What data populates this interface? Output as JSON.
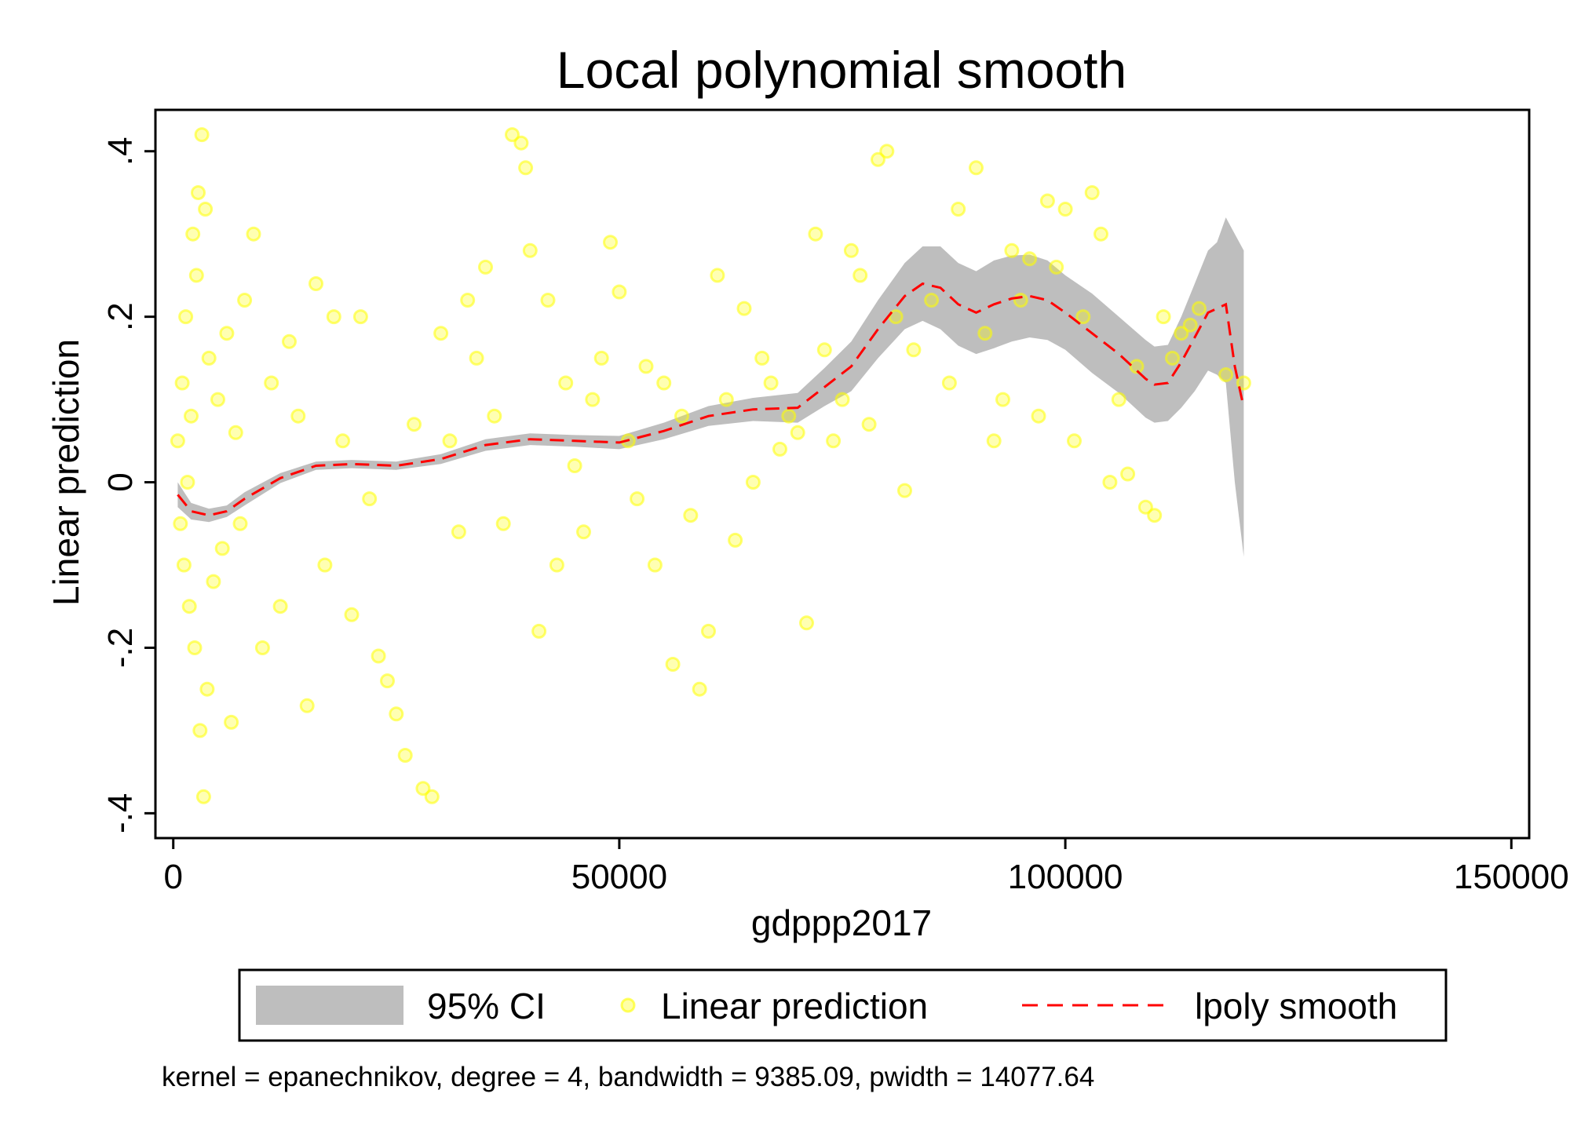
{
  "chart_data": {
    "type": "scatter",
    "title": "Local polynomial smooth",
    "xlabel": "gdppp2017",
    "ylabel": "Linear prediction",
    "xlim": [
      -2000,
      152000
    ],
    "ylim": [
      -0.43,
      0.45
    ],
    "x_ticks": [
      0,
      50000,
      100000,
      150000
    ],
    "x_tick_labels": [
      "0",
      "50000",
      "100000",
      "150000"
    ],
    "y_ticks": [
      -0.4,
      -0.2,
      0,
      0.2,
      0.4
    ],
    "y_tick_labels": [
      "-.4",
      "-.2",
      "0",
      ".2",
      ".4"
    ],
    "grid": false,
    "legend_position": "bottom",
    "legend": [
      {
        "label": "95% CI",
        "symbol": "band",
        "color": "#bebebe"
      },
      {
        "label": "Linear prediction",
        "symbol": "circle",
        "color": "#ffff00"
      },
      {
        "label": "lpoly smooth",
        "symbol": "dashed-line",
        "color": "#ff0000"
      }
    ],
    "note": "kernel = epanechnikov, degree = 4, bandwidth = 9385.09, pwidth = 14077.64",
    "colors": {
      "scatter": "#ffff00",
      "ci_band": "#bebebe",
      "smooth_line": "#ff0000"
    },
    "series": [
      {
        "name": "Linear prediction",
        "kind": "scatter",
        "points": [
          [
            500,
            0.05
          ],
          [
            800,
            -0.05
          ],
          [
            1000,
            0.12
          ],
          [
            1200,
            -0.1
          ],
          [
            1400,
            0.2
          ],
          [
            1600,
            0.0
          ],
          [
            1800,
            -0.15
          ],
          [
            2000,
            0.08
          ],
          [
            2200,
            0.3
          ],
          [
            2400,
            -0.2
          ],
          [
            2600,
            0.25
          ],
          [
            2800,
            0.35
          ],
          [
            3000,
            -0.3
          ],
          [
            3200,
            0.42
          ],
          [
            3400,
            -0.38
          ],
          [
            3600,
            0.33
          ],
          [
            3800,
            -0.25
          ],
          [
            4000,
            0.15
          ],
          [
            4500,
            -0.12
          ],
          [
            5000,
            0.1
          ],
          [
            5500,
            -0.08
          ],
          [
            6000,
            0.18
          ],
          [
            6500,
            -0.29
          ],
          [
            7000,
            0.06
          ],
          [
            7500,
            -0.05
          ],
          [
            8000,
            0.22
          ],
          [
            9000,
            0.3
          ],
          [
            10000,
            -0.2
          ],
          [
            11000,
            0.12
          ],
          [
            12000,
            -0.15
          ],
          [
            13000,
            0.17
          ],
          [
            14000,
            0.08
          ],
          [
            15000,
            -0.27
          ],
          [
            16000,
            0.24
          ],
          [
            17000,
            -0.1
          ],
          [
            18000,
            0.2
          ],
          [
            19000,
            0.05
          ],
          [
            20000,
            -0.16
          ],
          [
            21000,
            0.2
          ],
          [
            22000,
            -0.02
          ],
          [
            23000,
            -0.21
          ],
          [
            24000,
            -0.24
          ],
          [
            25000,
            -0.28
          ],
          [
            26000,
            -0.33
          ],
          [
            27000,
            0.07
          ],
          [
            28000,
            -0.37
          ],
          [
            29000,
            -0.38
          ],
          [
            30000,
            0.18
          ],
          [
            31000,
            0.05
          ],
          [
            32000,
            -0.06
          ],
          [
            33000,
            0.22
          ],
          [
            34000,
            0.15
          ],
          [
            35000,
            0.26
          ],
          [
            36000,
            0.08
          ],
          [
            37000,
            -0.05
          ],
          [
            38000,
            0.42
          ],
          [
            39000,
            0.41
          ],
          [
            39500,
            0.38
          ],
          [
            40000,
            0.28
          ],
          [
            41000,
            -0.18
          ],
          [
            42000,
            0.22
          ],
          [
            43000,
            -0.1
          ],
          [
            44000,
            0.12
          ],
          [
            45000,
            0.02
          ],
          [
            46000,
            -0.06
          ],
          [
            47000,
            0.1
          ],
          [
            48000,
            0.15
          ],
          [
            49000,
            0.29
          ],
          [
            50000,
            0.23
          ],
          [
            51000,
            0.05
          ],
          [
            52000,
            -0.02
          ],
          [
            53000,
            0.14
          ],
          [
            54000,
            -0.1
          ],
          [
            55000,
            0.12
          ],
          [
            56000,
            -0.22
          ],
          [
            57000,
            0.08
          ],
          [
            58000,
            -0.04
          ],
          [
            59000,
            -0.25
          ],
          [
            60000,
            -0.18
          ],
          [
            61000,
            0.25
          ],
          [
            62000,
            0.1
          ],
          [
            63000,
            -0.07
          ],
          [
            64000,
            0.21
          ],
          [
            65000,
            0.0
          ],
          [
            66000,
            0.15
          ],
          [
            67000,
            0.12
          ],
          [
            68000,
            0.04
          ],
          [
            69000,
            0.08
          ],
          [
            70000,
            0.06
          ],
          [
            71000,
            -0.17
          ],
          [
            72000,
            0.3
          ],
          [
            73000,
            0.16
          ],
          [
            74000,
            0.05
          ],
          [
            75000,
            0.1
          ],
          [
            76000,
            0.28
          ],
          [
            77000,
            0.25
          ],
          [
            78000,
            0.07
          ],
          [
            79000,
            0.39
          ],
          [
            80000,
            0.4
          ],
          [
            81000,
            0.2
          ],
          [
            82000,
            -0.01
          ],
          [
            83000,
            0.16
          ],
          [
            85000,
            0.22
          ],
          [
            87000,
            0.12
          ],
          [
            88000,
            0.33
          ],
          [
            90000,
            0.38
          ],
          [
            91000,
            0.18
          ],
          [
            92000,
            0.05
          ],
          [
            93000,
            0.1
          ],
          [
            94000,
            0.28
          ],
          [
            95000,
            0.22
          ],
          [
            96000,
            0.27
          ],
          [
            97000,
            0.08
          ],
          [
            98000,
            0.34
          ],
          [
            99000,
            0.26
          ],
          [
            100000,
            0.33
          ],
          [
            101000,
            0.05
          ],
          [
            102000,
            0.2
          ],
          [
            103000,
            0.35
          ],
          [
            104000,
            0.3
          ],
          [
            105000,
            0.0
          ],
          [
            106000,
            0.1
          ],
          [
            107000,
            0.01
          ],
          [
            108000,
            0.14
          ],
          [
            109000,
            -0.03
          ],
          [
            110000,
            -0.04
          ],
          [
            111000,
            0.2
          ],
          [
            112000,
            0.15
          ],
          [
            113000,
            0.18
          ],
          [
            114000,
            0.19
          ],
          [
            115000,
            0.21
          ],
          [
            118000,
            0.13
          ],
          [
            120000,
            0.12
          ]
        ]
      },
      {
        "name": "lpoly smooth",
        "kind": "line",
        "x": [
          500,
          2000,
          4000,
          6000,
          8000,
          12000,
          16000,
          20000,
          25000,
          30000,
          35000,
          40000,
          45000,
          50000,
          55000,
          60000,
          65000,
          70000,
          73000,
          76000,
          79000,
          82000,
          84000,
          86000,
          88000,
          90000,
          92000,
          94000,
          96000,
          98000,
          100000,
          103000,
          106000,
          109000,
          110000,
          111500,
          113000,
          114500,
          116000,
          117000,
          118000,
          119000,
          120000
        ],
        "y": [
          -0.015,
          -0.035,
          -0.04,
          -0.035,
          -0.02,
          0.005,
          0.02,
          0.022,
          0.02,
          0.028,
          0.045,
          0.052,
          0.05,
          0.048,
          0.062,
          0.08,
          0.088,
          0.09,
          0.115,
          0.14,
          0.185,
          0.225,
          0.24,
          0.235,
          0.215,
          0.205,
          0.215,
          0.222,
          0.225,
          0.22,
          0.205,
          0.18,
          0.155,
          0.125,
          0.118,
          0.12,
          0.145,
          0.175,
          0.205,
          0.21,
          0.215,
          0.14,
          0.09
        ]
      },
      {
        "name": "95% CI",
        "kind": "band",
        "x": [
          500,
          2000,
          4000,
          6000,
          8000,
          12000,
          16000,
          20000,
          25000,
          30000,
          35000,
          40000,
          45000,
          50000,
          55000,
          60000,
          65000,
          70000,
          73000,
          76000,
          79000,
          82000,
          84000,
          86000,
          88000,
          90000,
          92000,
          94000,
          96000,
          98000,
          100000,
          103000,
          106000,
          109000,
          110000,
          111500,
          113000,
          114500,
          116000,
          117000,
          118000,
          119000,
          120000
        ],
        "lower": [
          -0.03,
          -0.045,
          -0.048,
          -0.042,
          -0.028,
          -0.001,
          0.015,
          0.017,
          0.015,
          0.022,
          0.038,
          0.045,
          0.043,
          0.04,
          0.052,
          0.068,
          0.074,
          0.072,
          0.092,
          0.11,
          0.15,
          0.185,
          0.195,
          0.185,
          0.165,
          0.155,
          0.162,
          0.17,
          0.175,
          0.172,
          0.16,
          0.132,
          0.108,
          0.078,
          0.072,
          0.074,
          0.09,
          0.11,
          0.135,
          0.13,
          0.12,
          0.0,
          -0.09
        ],
        "upper": [
          0.0,
          -0.025,
          -0.032,
          -0.028,
          -0.012,
          0.011,
          0.025,
          0.027,
          0.025,
          0.034,
          0.052,
          0.059,
          0.057,
          0.056,
          0.072,
          0.092,
          0.102,
          0.108,
          0.138,
          0.17,
          0.22,
          0.265,
          0.285,
          0.285,
          0.265,
          0.255,
          0.268,
          0.274,
          0.275,
          0.268,
          0.25,
          0.228,
          0.2,
          0.172,
          0.164,
          0.166,
          0.2,
          0.24,
          0.28,
          0.29,
          0.32,
          0.3,
          0.28
        ]
      }
    ]
  }
}
